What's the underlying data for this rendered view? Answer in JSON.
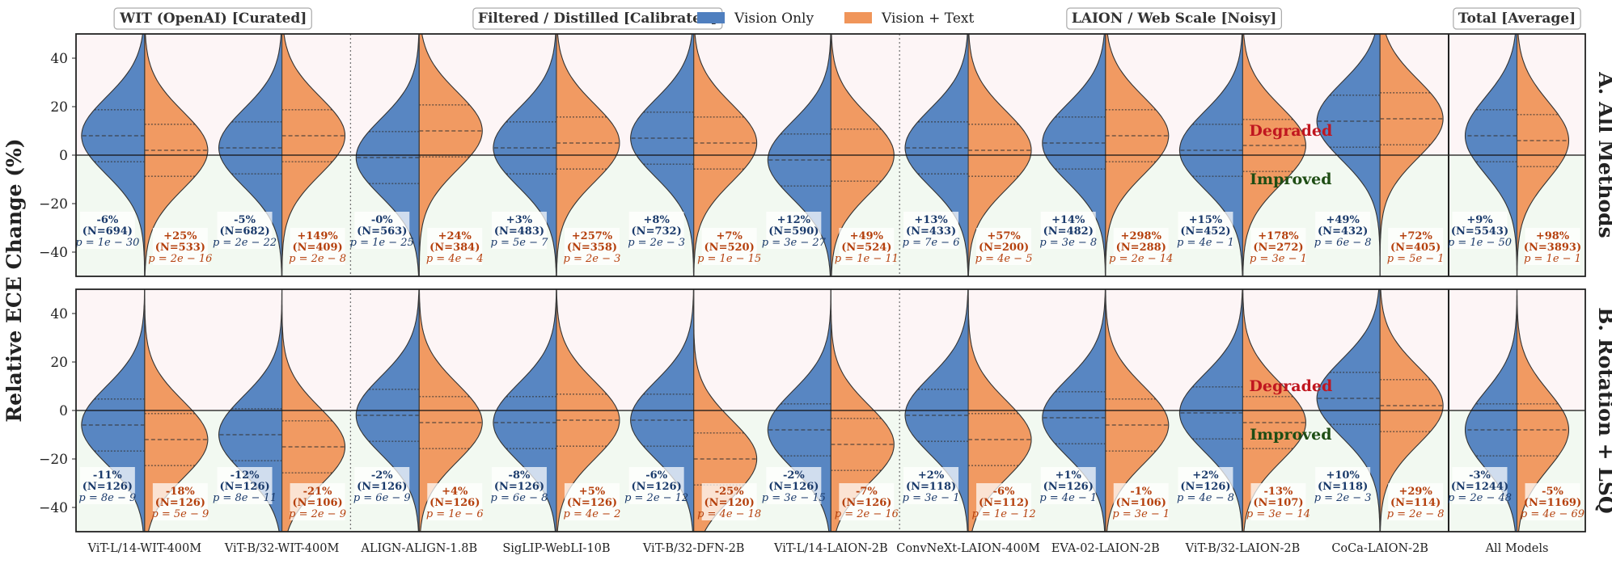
{
  "chart_data": {
    "type": "split-violin",
    "ylabel": "Relative ECE Change (%)",
    "ylim": [
      -50,
      50
    ],
    "yticks": [
      -40,
      -20,
      0,
      20,
      40
    ],
    "legend": {
      "items": [
        {
          "label": "Vision Only",
          "color": "#4f7fbf"
        },
        {
          "label": "Vision + Text",
          "color": "#f0955a"
        }
      ],
      "position": "top-center"
    },
    "groups": [
      {
        "label": "WIT (OpenAI) [Curated]"
      },
      {
        "label": "Filtered / Distilled [Calibrated]"
      },
      {
        "label": "LAION / Web Scale [Noisy]"
      },
      {
        "label": "Total [Average]"
      }
    ],
    "region_labels": {
      "degraded": "Degraded",
      "improved": "Improved"
    },
    "colors": {
      "vision_only": "#4f7fbf",
      "vision_text": "#f0955a",
      "vision_only_text": "#1a3a6b",
      "vision_text_text": "#b5400d",
      "degraded_bg": "#fdf5f6",
      "improved_bg": "#f2f9f1",
      "degraded_label": "#c0161f",
      "improved_label": "#1e4d14"
    },
    "models": [
      "ViT-L/14-WIT-400M",
      "ViT-B/32-WIT-400M",
      "ALIGN-ALIGN-1.8B",
      "SigLIP-WebLI-10B",
      "ViT-B/32-DFN-2B",
      "ViT-L/14-LAION-2B",
      "ConvNeXt-LAION-400M",
      "EVA-02-LAION-2B",
      "ViT-B/32-LAION-2B",
      "CoCa-LAION-2B",
      "All Models"
    ],
    "panels": [
      {
        "title": "A. All Methods",
        "series": [
          {
            "name": "Vision Only",
            "medians": [
              8,
              3,
              -1,
              3,
              7,
              -2,
              3,
              5,
              2,
              14,
              8
            ],
            "stats": [
              {
                "pct": "-6%",
                "n": "(N=694)",
                "p": "p = 1e − 30"
              },
              {
                "pct": "-5%",
                "n": "(N=682)",
                "p": "p = 2e − 22"
              },
              {
                "pct": "-0%",
                "n": "(N=563)",
                "p": "p = 1e − 25"
              },
              {
                "pct": "+3%",
                "n": "(N=483)",
                "p": "p = 5e − 7"
              },
              {
                "pct": "+8%",
                "n": "(N=732)",
                "p": "p = 2e − 3"
              },
              {
                "pct": "+12%",
                "n": "(N=590)",
                "p": "p = 3e − 27"
              },
              {
                "pct": "+13%",
                "n": "(N=433)",
                "p": "p = 7e − 6"
              },
              {
                "pct": "+14%",
                "n": "(N=482)",
                "p": "p = 3e − 8"
              },
              {
                "pct": "+15%",
                "n": "(N=452)",
                "p": "p = 4e − 1"
              },
              {
                "pct": "+49%",
                "n": "(N=432)",
                "p": "p = 6e − 8"
              },
              {
                "pct": "+9%",
                "n": "(N=5543)",
                "p": "p = 1e − 50"
              }
            ]
          },
          {
            "name": "Vision + Text",
            "medians": [
              2,
              8,
              10,
              5,
              5,
              0,
              2,
              8,
              4,
              15,
              6
            ],
            "stats": [
              {
                "pct": "+25%",
                "n": "(N=533)",
                "p": "p = 2e − 16"
              },
              {
                "pct": "+149%",
                "n": "(N=409)",
                "p": "p = 2e − 8"
              },
              {
                "pct": "+24%",
                "n": "(N=384)",
                "p": "p = 4e − 4"
              },
              {
                "pct": "+257%",
                "n": "(N=358)",
                "p": "p = 2e − 3"
              },
              {
                "pct": "+7%",
                "n": "(N=520)",
                "p": "p = 1e − 15"
              },
              {
                "pct": "+49%",
                "n": "(N=524)",
                "p": "p = 1e − 11"
              },
              {
                "pct": "+57%",
                "n": "(N=200)",
                "p": "p = 4e − 5"
              },
              {
                "pct": "+298%",
                "n": "(N=288)",
                "p": "p = 2e − 14"
              },
              {
                "pct": "+178%",
                "n": "(N=272)",
                "p": "p = 3e − 1"
              },
              {
                "pct": "+72%",
                "n": "(N=405)",
                "p": "p = 5e − 1"
              },
              {
                "pct": "+98%",
                "n": "(N=3893)",
                "p": "p = 1e − 1"
              }
            ]
          }
        ]
      },
      {
        "title": "B. Rotation + LSQ",
        "series": [
          {
            "name": "Vision Only",
            "medians": [
              -6,
              -10,
              -2,
              -5,
              -4,
              -8,
              -2,
              -3,
              -1,
              5,
              -8
            ],
            "stats": [
              {
                "pct": "-11%",
                "n": "(N=126)",
                "p": "p = 8e − 9"
              },
              {
                "pct": "-12%",
                "n": "(N=126)",
                "p": "p = 8e − 11"
              },
              {
                "pct": "-2%",
                "n": "(N=126)",
                "p": "p = 6e − 9"
              },
              {
                "pct": "-8%",
                "n": "(N=126)",
                "p": "p = 6e − 8"
              },
              {
                "pct": "-6%",
                "n": "(N=126)",
                "p": "p = 2e − 12"
              },
              {
                "pct": "-2%",
                "n": "(N=126)",
                "p": "p = 3e − 15"
              },
              {
                "pct": "+2%",
                "n": "(N=118)",
                "p": "p = 3e − 1"
              },
              {
                "pct": "+1%",
                "n": "(N=126)",
                "p": "p = 4e − 1"
              },
              {
                "pct": "+2%",
                "n": "(N=126)",
                "p": "p = 4e − 8"
              },
              {
                "pct": "+10%",
                "n": "(N=118)",
                "p": "p = 2e − 3"
              },
              {
                "pct": "-3%",
                "n": "(N=1244)",
                "p": "p = 2e − 48"
              }
            ]
          },
          {
            "name": "Vision + Text",
            "medians": [
              -12,
              -15,
              -5,
              -4,
              -20,
              -14,
              -12,
              -6,
              -5,
              2,
              -8
            ],
            "stats": [
              {
                "pct": "-18%",
                "n": "(N=126)",
                "p": "p = 5e − 9"
              },
              {
                "pct": "-21%",
                "n": "(N=106)",
                "p": "p = 2e − 9"
              },
              {
                "pct": "+4%",
                "n": "(N=126)",
                "p": "p = 1e − 6"
              },
              {
                "pct": "+5%",
                "n": "(N=126)",
                "p": "p = 4e − 2"
              },
              {
                "pct": "-25%",
                "n": "(N=120)",
                "p": "p = 4e − 18"
              },
              {
                "pct": "-7%",
                "n": "(N=126)",
                "p": "p = 2e − 16"
              },
              {
                "pct": "-6%",
                "n": "(N=112)",
                "p": "p = 1e − 12"
              },
              {
                "pct": "-1%",
                "n": "(N=106)",
                "p": "p = 3e − 1"
              },
              {
                "pct": "-13%",
                "n": "(N=107)",
                "p": "p = 3e − 14"
              },
              {
                "pct": "+29%",
                "n": "(N=114)",
                "p": "p = 2e − 8"
              },
              {
                "pct": "-5%",
                "n": "(N=1169)",
                "p": "p = 4e − 69"
              }
            ]
          }
        ]
      }
    ]
  }
}
